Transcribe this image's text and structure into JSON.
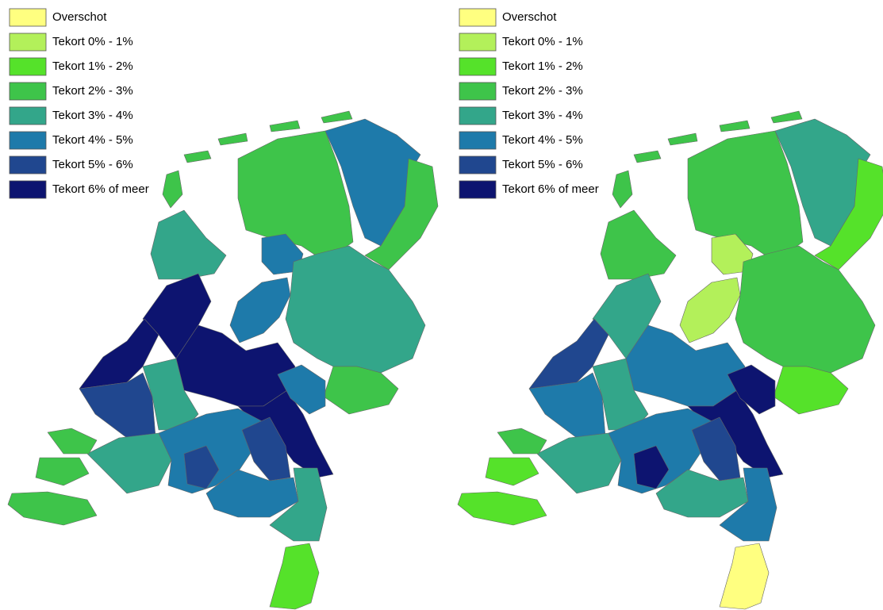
{
  "maps": [
    {
      "legend": [
        {
          "label": "Overschot",
          "color": "#ffff80"
        },
        {
          "label": "Tekort 0% - 1%",
          "color": "#b3f05a"
        },
        {
          "label": "Tekort 1% - 2%",
          "color": "#55e22a"
        },
        {
          "label": "Tekort 2% - 3%",
          "color": "#3ec44a"
        },
        {
          "label": "Tekort 3% - 4%",
          "color": "#33a68a"
        },
        {
          "label": "Tekort 4% - 5%",
          "color": "#1e7aaa"
        },
        {
          "label": "Tekort 5% - 6%",
          "color": "#20478f"
        },
        {
          "label": "Tekort 6% of meer",
          "color": "#0d1470"
        }
      ]
    },
    {
      "legend": [
        {
          "label": "Overschot",
          "color": "#ffff80"
        },
        {
          "label": "Tekort 0% - 1%",
          "color": "#b3f05a"
        },
        {
          "label": "Tekort 1% - 2%",
          "color": "#55e22a"
        },
        {
          "label": "Tekort 2% - 3%",
          "color": "#3ec44a"
        },
        {
          "label": "Tekort 3% - 4%",
          "color": "#33a68a"
        },
        {
          "label": "Tekort 4% - 5%",
          "color": "#1e7aaa"
        },
        {
          "label": "Tekort 5% - 6%",
          "color": "#20478f"
        },
        {
          "label": "Tekort 6% of meer",
          "color": "#0d1470"
        }
      ]
    }
  ]
}
